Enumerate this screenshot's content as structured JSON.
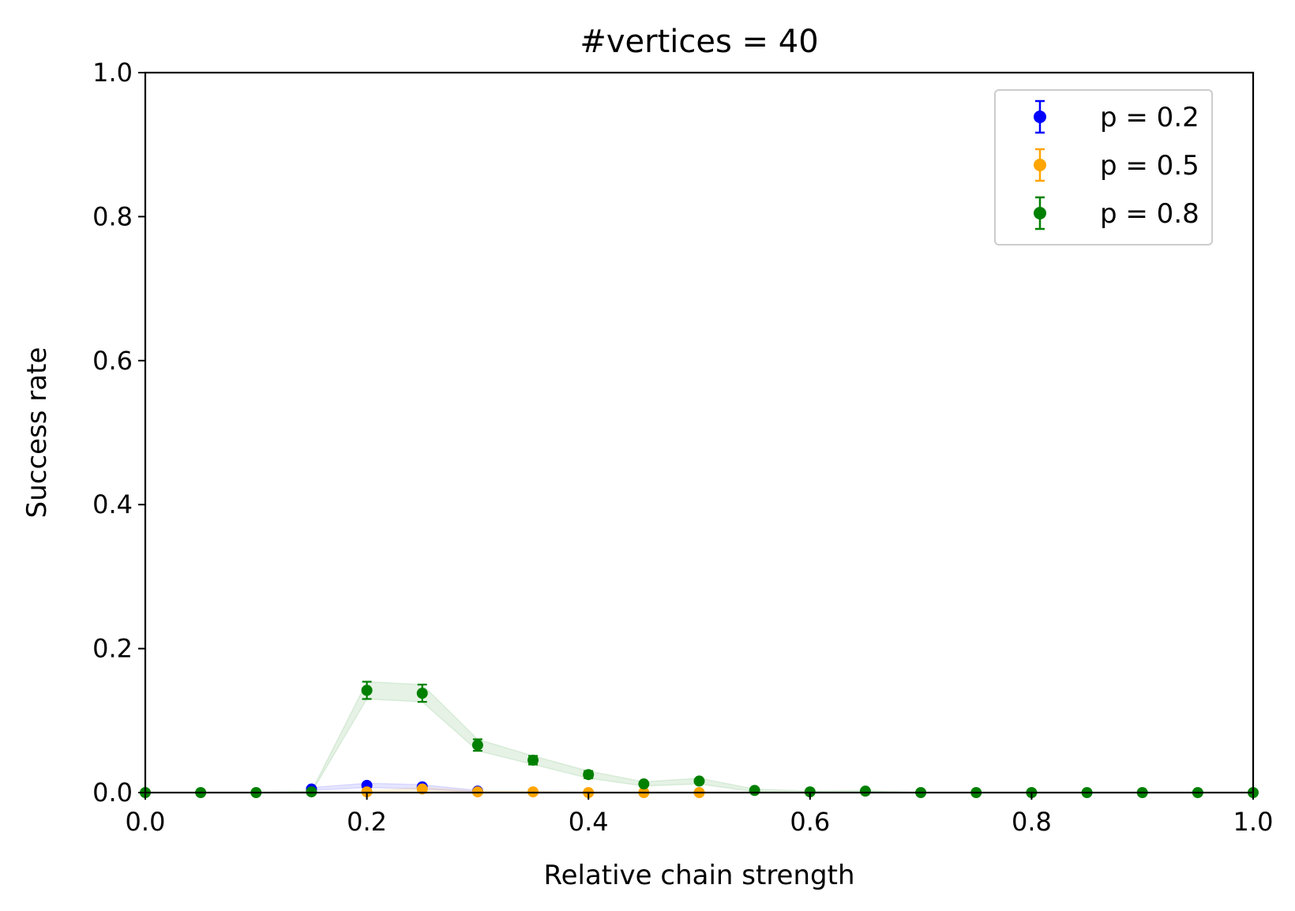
{
  "chart_data": {
    "type": "scatter",
    "title": "#vertices = 40",
    "xlabel": "Relative chain strength",
    "ylabel": "Success rate",
    "xlim": [
      0.0,
      1.0
    ],
    "ylim": [
      0.0,
      1.0
    ],
    "xticks": [
      "0.0",
      "0.2",
      "0.4",
      "0.6",
      "0.8",
      "1.0"
    ],
    "yticks": [
      "0.0",
      "0.2",
      "0.4",
      "0.6",
      "0.8",
      "1.0"
    ],
    "grid": false,
    "legend_position": "top-right",
    "series": [
      {
        "name": "p = 0.2",
        "color": "#0000ff",
        "x": [
          0.15,
          0.2,
          0.25,
          0.3
        ],
        "y": [
          0.005,
          0.01,
          0.008,
          0.002
        ],
        "err": [
          0.002,
          0.003,
          0.003,
          0.001
        ]
      },
      {
        "name": "p = 0.5",
        "color": "#ffa500",
        "x": [
          0.2,
          0.25,
          0.3,
          0.35,
          0.4,
          0.45,
          0.5
        ],
        "y": [
          0.001,
          0.005,
          0.001,
          0.001,
          0.0,
          0.0,
          0.0
        ],
        "err": [
          0.001,
          0.002,
          0.001,
          0.001,
          0.0,
          0.0,
          0.0
        ]
      },
      {
        "name": "p = 0.8",
        "color": "#008000",
        "x": [
          0.0,
          0.05,
          0.1,
          0.15,
          0.2,
          0.25,
          0.3,
          0.35,
          0.4,
          0.45,
          0.5,
          0.55,
          0.6,
          0.65,
          0.7,
          0.75,
          0.8,
          0.85,
          0.9,
          0.95,
          1.0
        ],
        "y": [
          0.0,
          0.0,
          0.0,
          0.001,
          0.142,
          0.138,
          0.066,
          0.045,
          0.025,
          0.012,
          0.016,
          0.003,
          0.001,
          0.002,
          0.0,
          0.0,
          0.0,
          0.0,
          0.0,
          0.0,
          0.0
        ],
        "err": [
          0.0,
          0.0,
          0.0,
          0.001,
          0.012,
          0.012,
          0.008,
          0.006,
          0.005,
          0.003,
          0.004,
          0.002,
          0.001,
          0.001,
          0.0,
          0.0,
          0.0,
          0.0,
          0.0,
          0.0,
          0.0
        ]
      }
    ]
  }
}
